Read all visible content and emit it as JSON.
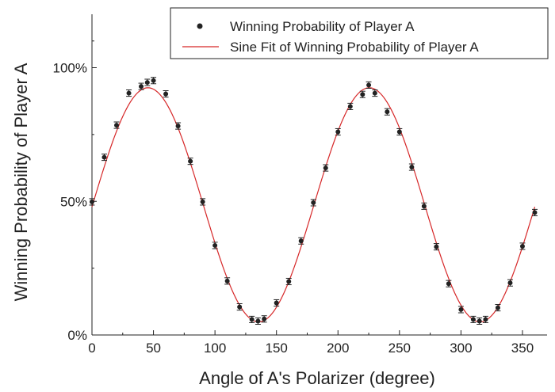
{
  "chart_data": {
    "type": "scatter",
    "title": "",
    "xlabel": "Angle of A's Polarizer (degree)",
    "ylabel": "Winning Probability of Player A",
    "xlim": [
      0,
      370
    ],
    "ylim": [
      0,
      120
    ],
    "x_ticks": [
      0,
      50,
      100,
      150,
      200,
      250,
      300,
      350
    ],
    "x_tick_labels": [
      "0",
      "50",
      "100",
      "150",
      "200",
      "250",
      "300",
      "350"
    ],
    "y_ticks": [
      0,
      50,
      100
    ],
    "y_tick_labels": [
      "0%",
      "50%",
      "100%"
    ],
    "grid": false,
    "legend_position": "top-right",
    "colors": {
      "points": "#222222",
      "fit": "#d62728",
      "axis": "#222222"
    },
    "series": [
      {
        "name": "Winning Probability of Player A",
        "kind": "points-with-error-bars",
        "error": 1.2,
        "points": [
          [
            0,
            49.8
          ],
          [
            10,
            66.5
          ],
          [
            20,
            78.5
          ],
          [
            30,
            90.5
          ],
          [
            40,
            93
          ],
          [
            45,
            94.5
          ],
          [
            50,
            95.2
          ],
          [
            60,
            90.2
          ],
          [
            70,
            78.2
          ],
          [
            80,
            65.0
          ],
          [
            90,
            49.8
          ],
          [
            100,
            33.5
          ],
          [
            110,
            20.2
          ],
          [
            120,
            10.5
          ],
          [
            130,
            5.8
          ],
          [
            135,
            5.2
          ],
          [
            140,
            6.0
          ],
          [
            150,
            12.0
          ],
          [
            160,
            20.0
          ],
          [
            170,
            35.2
          ],
          [
            180,
            49.5
          ],
          [
            190,
            62.5
          ],
          [
            200,
            76.0
          ],
          [
            210,
            85.5
          ],
          [
            220,
            90.0
          ],
          [
            225,
            93.5
          ],
          [
            230,
            90.5
          ],
          [
            240,
            83.5
          ],
          [
            250,
            76.0
          ],
          [
            260,
            62.8
          ],
          [
            270,
            48.2
          ],
          [
            280,
            33.0
          ],
          [
            290,
            19.2
          ],
          [
            300,
            9.5
          ],
          [
            310,
            5.8
          ],
          [
            315,
            5.2
          ],
          [
            320,
            5.8
          ],
          [
            330,
            10.2
          ],
          [
            340,
            19.5
          ],
          [
            350,
            33.2
          ],
          [
            360,
            45.8
          ]
        ]
      },
      {
        "name": "Sine Fit of Winning Probability of Player A",
        "kind": "fit-line",
        "function": {
          "mean": 48.7,
          "amplitude": 43.8,
          "period": 180,
          "phase_deg": 0.5
        },
        "x_range": [
          0,
          360
        ]
      }
    ]
  }
}
